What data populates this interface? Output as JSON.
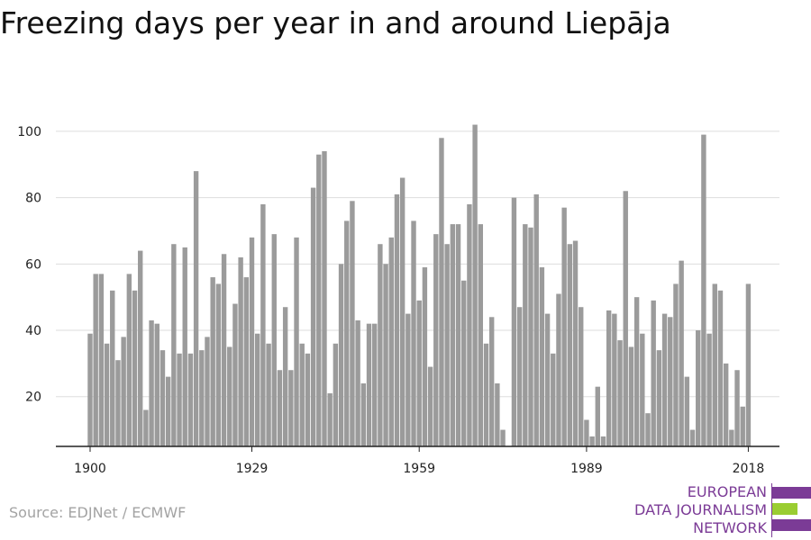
{
  "title": "Freezing days per year in and around Liepāja",
  "source": "Source: EDJNet / ECMWF",
  "logo": {
    "lines": [
      "EUROPEAN",
      "DATA JOURNALISM",
      "NETWORK"
    ]
  },
  "colors": {
    "bar": "#9b9b9b",
    "grid": "#dddddd",
    "axis": "#222222",
    "brand_purple": "#7b3b96",
    "brand_green": "#9acd32"
  },
  "chart_data": {
    "type": "bar",
    "title": "Freezing days per year in and around Liepāja",
    "xlabel": "",
    "ylabel": "",
    "x_ticks": [
      1900,
      1929,
      1959,
      1989,
      2018
    ],
    "y_ticks": [
      20,
      40,
      60,
      80,
      100
    ],
    "ylim": [
      5,
      105
    ],
    "grid": true,
    "categories": [
      1900,
      1901,
      1902,
      1903,
      1904,
      1905,
      1906,
      1907,
      1908,
      1909,
      1910,
      1911,
      1912,
      1913,
      1914,
      1915,
      1916,
      1917,
      1918,
      1919,
      1920,
      1921,
      1922,
      1923,
      1924,
      1925,
      1926,
      1927,
      1928,
      1929,
      1930,
      1931,
      1932,
      1933,
      1934,
      1935,
      1936,
      1937,
      1938,
      1939,
      1940,
      1941,
      1942,
      1943,
      1944,
      1945,
      1946,
      1947,
      1948,
      1949,
      1950,
      1951,
      1952,
      1953,
      1954,
      1955,
      1956,
      1957,
      1958,
      1959,
      1960,
      1961,
      1962,
      1963,
      1964,
      1965,
      1966,
      1967,
      1968,
      1969,
      1970,
      1971,
      1972,
      1973,
      1974,
      1975,
      1976,
      1977,
      1978,
      1979,
      1980,
      1981,
      1982,
      1983,
      1984,
      1985,
      1986,
      1987,
      1988,
      1989,
      1990,
      1991,
      1992,
      1993,
      1994,
      1995,
      1996,
      1997,
      1998,
      1999,
      2000,
      2001,
      2002,
      2003,
      2004,
      2005,
      2006,
      2007,
      2008,
      2009,
      2010,
      2011,
      2012,
      2013,
      2014,
      2015,
      2016,
      2017,
      2018
    ],
    "values": [
      39,
      57,
      57,
      36,
      52,
      31,
      38,
      57,
      52,
      64,
      16,
      43,
      42,
      34,
      26,
      66,
      33,
      65,
      33,
      88,
      34,
      38,
      56,
      54,
      63,
      35,
      48,
      62,
      56,
      68,
      39,
      78,
      36,
      69,
      28,
      47,
      28,
      68,
      36,
      33,
      83,
      93,
      94,
      21,
      36,
      60,
      73,
      79,
      43,
      24,
      42,
      42,
      66,
      60,
      68,
      81,
      86,
      45,
      73,
      49,
      59,
      29,
      69,
      98,
      66,
      72,
      72,
      55,
      78,
      102,
      72,
      36,
      44,
      24,
      10,
      5,
      80,
      47,
      72,
      71,
      81,
      59,
      45,
      33,
      51,
      77,
      66,
      67,
      47,
      13,
      8,
      23,
      8,
      46,
      45,
      37,
      82,
      35,
      50,
      39,
      15,
      49,
      34,
      45,
      44,
      54,
      61,
      26,
      10,
      40,
      99,
      39,
      54,
      52,
      30,
      10,
      28,
      17,
      54
    ]
  }
}
